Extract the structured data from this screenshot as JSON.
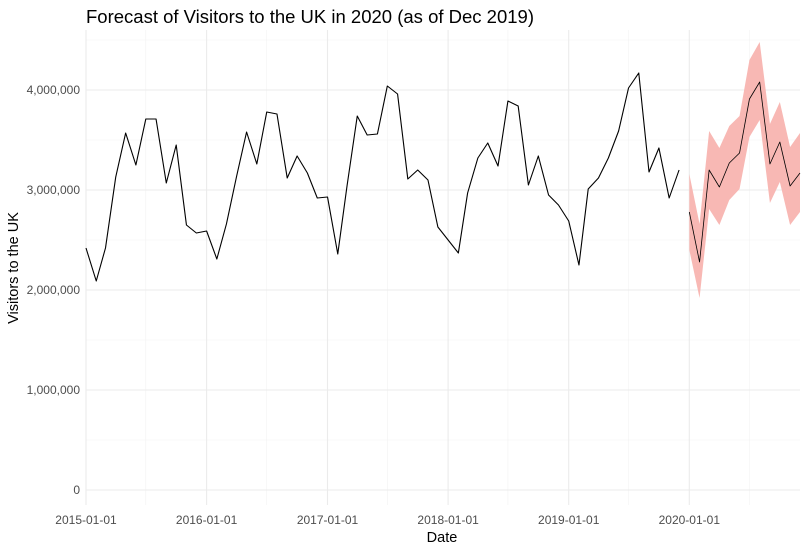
{
  "chart_data": {
    "type": "line",
    "title": "Forecast of Visitors to the UK in 2020 (as of Dec 2019)",
    "xlabel": "Date",
    "ylabel": "Visitors to the UK",
    "ylim": [
      -150000,
      4600000
    ],
    "xlim": [
      "2015-01-01",
      "2020-12-01"
    ],
    "grid": true,
    "x_ticks": [
      "2015-01-01",
      "2016-01-01",
      "2017-01-01",
      "2018-01-01",
      "2019-01-01",
      "2020-01-01"
    ],
    "y_ticks": [
      0,
      1000000,
      2000000,
      3000000,
      4000000
    ],
    "y_tick_labels": [
      "0",
      "1,000,000",
      "2,000,000",
      "3,000,000",
      "4,000,000"
    ],
    "colors": {
      "actual": "#000000",
      "forecast_line": "#000000",
      "interval": "#f8b4b0"
    },
    "actual": {
      "dates": [
        "2015-01-01",
        "2015-02-01",
        "2015-03-01",
        "2015-04-01",
        "2015-05-01",
        "2015-06-01",
        "2015-07-01",
        "2015-08-01",
        "2015-09-01",
        "2015-10-01",
        "2015-11-01",
        "2015-12-01",
        "2016-01-01",
        "2016-02-01",
        "2016-03-01",
        "2016-04-01",
        "2016-05-01",
        "2016-06-01",
        "2016-07-01",
        "2016-08-01",
        "2016-09-01",
        "2016-10-01",
        "2016-11-01",
        "2016-12-01",
        "2017-01-01",
        "2017-02-01",
        "2017-03-01",
        "2017-04-01",
        "2017-05-01",
        "2017-06-01",
        "2017-07-01",
        "2017-08-01",
        "2017-09-01",
        "2017-10-01",
        "2017-11-01",
        "2017-12-01",
        "2018-01-01",
        "2018-02-01",
        "2018-03-01",
        "2018-04-01",
        "2018-05-01",
        "2018-06-01",
        "2018-07-01",
        "2018-08-01",
        "2018-09-01",
        "2018-10-01",
        "2018-11-01",
        "2018-12-01",
        "2019-01-01",
        "2019-02-01",
        "2019-03-01",
        "2019-04-01",
        "2019-05-01",
        "2019-06-01",
        "2019-07-01",
        "2019-08-01",
        "2019-09-01",
        "2019-10-01",
        "2019-11-01",
        "2019-12-01"
      ],
      "values": [
        2420000,
        2090000,
        2420000,
        3130000,
        3570000,
        3250000,
        3710000,
        3710000,
        3070000,
        3450000,
        2650000,
        2570000,
        2590000,
        2310000,
        2660000,
        3140000,
        3580000,
        3260000,
        3780000,
        3760000,
        3120000,
        3340000,
        3170000,
        2920000,
        2930000,
        2360000,
        3040000,
        3740000,
        3550000,
        3560000,
        4040000,
        3960000,
        3110000,
        3200000,
        3100000,
        2630000,
        2500000,
        2370000,
        2970000,
        3320000,
        3470000,
        3240000,
        3890000,
        3840000,
        3050000,
        3340000,
        2950000,
        2850000,
        2690000,
        2250000,
        3010000,
        3120000,
        3320000,
        3590000,
        4020000,
        4170000,
        3180000,
        3420000,
        2920000,
        3200000
      ]
    },
    "forecast": {
      "dates": [
        "2020-01-01",
        "2020-02-01",
        "2020-03-01",
        "2020-04-01",
        "2020-05-01",
        "2020-06-01",
        "2020-07-01",
        "2020-08-01",
        "2020-09-01",
        "2020-10-01",
        "2020-11-01",
        "2020-12-01"
      ],
      "values": [
        2780000,
        2280000,
        3200000,
        3030000,
        3270000,
        3370000,
        3910000,
        4080000,
        3260000,
        3480000,
        3040000,
        3170000
      ],
      "lower": [
        2400000,
        1920000,
        2810000,
        2650000,
        2900000,
        3010000,
        3530000,
        3700000,
        2870000,
        3080000,
        2650000,
        2780000
      ],
      "upper": [
        3160000,
        2660000,
        3590000,
        3420000,
        3640000,
        3740000,
        4300000,
        4480000,
        3660000,
        3880000,
        3430000,
        3570000
      ]
    }
  }
}
